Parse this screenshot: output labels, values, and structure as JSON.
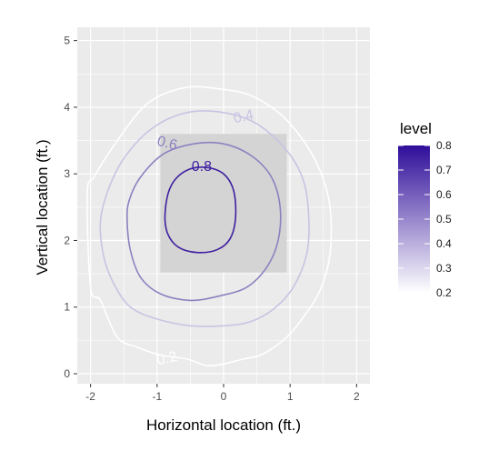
{
  "chart_data": {
    "type": "contour",
    "title": "",
    "xlabel": "Horizontal location (ft.)",
    "ylabel": "Vertical location (ft.)",
    "xlim": [
      -2.2,
      2.2
    ],
    "ylim": [
      -0.15,
      5.2
    ],
    "x_ticks": [
      -2,
      -1,
      0,
      1,
      2
    ],
    "y_ticks": [
      0,
      1,
      2,
      3,
      4,
      5
    ],
    "grid": true,
    "panel_background": "#ebebeb",
    "strike_zone": {
      "x_min": -0.95,
      "x_max": 0.95,
      "y_min": 1.52,
      "y_max": 3.6,
      "fill": "#d4d4d4"
    },
    "contours": [
      {
        "level": 0.2,
        "label": "0.2",
        "color": "#ffffff",
        "points": [
          [
            -2.0,
            1.3
          ],
          [
            -1.85,
            1.1
          ],
          [
            -1.6,
            0.55
          ],
          [
            -1.3,
            0.4
          ],
          [
            -0.95,
            0.28
          ],
          [
            -0.55,
            0.22
          ],
          [
            -0.2,
            0.12
          ],
          [
            0.3,
            0.22
          ],
          [
            0.6,
            0.3
          ],
          [
            0.95,
            0.55
          ],
          [
            1.2,
            0.85
          ],
          [
            1.45,
            1.25
          ],
          [
            1.6,
            1.8
          ],
          [
            1.6,
            2.5
          ],
          [
            1.45,
            3.05
          ],
          [
            1.2,
            3.5
          ],
          [
            0.85,
            3.9
          ],
          [
            0.4,
            4.18
          ],
          [
            -0.1,
            4.28
          ],
          [
            -0.55,
            4.3
          ],
          [
            -1.0,
            4.15
          ],
          [
            -1.3,
            3.9
          ],
          [
            -1.7,
            3.35
          ],
          [
            -1.95,
            2.95
          ],
          [
            -2.05,
            2.7
          ]
        ]
      },
      {
        "level": 0.4,
        "label": "0.4",
        "color": "#c7c4e2",
        "points": [
          [
            -1.85,
            2.3
          ],
          [
            -1.8,
            1.75
          ],
          [
            -1.65,
            1.35
          ],
          [
            -1.4,
            1.0
          ],
          [
            -1.0,
            0.82
          ],
          [
            -0.5,
            0.72
          ],
          [
            0.0,
            0.72
          ],
          [
            0.4,
            0.78
          ],
          [
            0.75,
            0.97
          ],
          [
            1.05,
            1.3
          ],
          [
            1.25,
            1.8
          ],
          [
            1.28,
            2.35
          ],
          [
            1.2,
            2.9
          ],
          [
            0.95,
            3.35
          ],
          [
            0.5,
            3.75
          ],
          [
            0.0,
            3.92
          ],
          [
            -0.55,
            3.92
          ],
          [
            -1.05,
            3.7
          ],
          [
            -1.45,
            3.3
          ],
          [
            -1.7,
            2.85
          ]
        ]
      },
      {
        "level": 0.6,
        "label": "0.6",
        "color": "#8e80c0",
        "points": [
          [
            -1.45,
            2.3
          ],
          [
            -1.4,
            1.85
          ],
          [
            -1.25,
            1.45
          ],
          [
            -0.95,
            1.2
          ],
          [
            -0.5,
            1.1
          ],
          [
            -0.05,
            1.17
          ],
          [
            0.35,
            1.3
          ],
          [
            0.65,
            1.6
          ],
          [
            0.82,
            2.0
          ],
          [
            0.85,
            2.5
          ],
          [
            0.72,
            2.95
          ],
          [
            0.42,
            3.27
          ],
          [
            0.0,
            3.45
          ],
          [
            -0.45,
            3.45
          ],
          [
            -0.9,
            3.3
          ],
          [
            -1.25,
            2.95
          ],
          [
            -1.42,
            2.6
          ]
        ]
      },
      {
        "level": 0.8,
        "label": "0.8",
        "color": "#3f1fa0",
        "points": [
          [
            -0.88,
            2.4
          ],
          [
            -0.84,
            2.1
          ],
          [
            -0.68,
            1.9
          ],
          [
            -0.4,
            1.82
          ],
          [
            -0.1,
            1.86
          ],
          [
            0.1,
            2.03
          ],
          [
            0.18,
            2.35
          ],
          [
            0.15,
            2.75
          ],
          [
            0.0,
            3.0
          ],
          [
            -0.28,
            3.1
          ],
          [
            -0.58,
            3.04
          ],
          [
            -0.8,
            2.8
          ]
        ]
      }
    ],
    "contour_labels": [
      {
        "text": "0.2",
        "x": -0.85,
        "y": 0.22,
        "angle": 12,
        "color": "#ffffff"
      },
      {
        "text": "0.4",
        "x": 0.3,
        "y": 3.85,
        "angle": 12,
        "color": "#c7c4e2"
      },
      {
        "text": "0.6",
        "x": -0.85,
        "y": 3.45,
        "angle": -14,
        "color": "#8e80c0"
      },
      {
        "text": "0.8",
        "x": -0.33,
        "y": 3.1,
        "angle": 0,
        "color": "#3f1fa0"
      }
    ],
    "legend": {
      "title": "level",
      "position": "right",
      "breaks": [
        "0.8",
        "0.7",
        "0.6",
        "0.5",
        "0.4",
        "0.3",
        "0.2"
      ],
      "low_color": "#ffffff",
      "high_color": "#2f0e9a"
    }
  }
}
